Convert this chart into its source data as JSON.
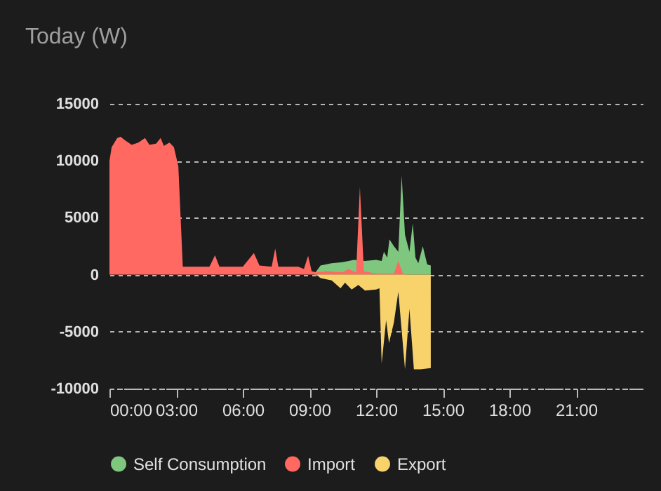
{
  "chart_data": {
    "type": "area",
    "title": "Today (W)",
    "xlim": [
      0,
      24
    ],
    "ylim": [
      -10000,
      15000
    ],
    "xticks": [
      {
        "value": 0,
        "label": "00:00"
      },
      {
        "value": 3,
        "label": "03:00"
      },
      {
        "value": 6,
        "label": "06:00"
      },
      {
        "value": 9,
        "label": "09:00"
      },
      {
        "value": 12,
        "label": "12:00"
      },
      {
        "value": 15,
        "label": "15:00"
      },
      {
        "value": 18,
        "label": "18:00"
      },
      {
        "value": 21,
        "label": "21:00"
      }
    ],
    "yticks": [
      -10000,
      -5000,
      0,
      5000,
      10000,
      15000
    ],
    "grid": "y",
    "legend": "bottom",
    "series": [
      {
        "name": "Self Consumption",
        "color": "#7fc77f",
        "x": [
          9.2,
          9.5,
          10.0,
          10.5,
          11.0,
          11.5,
          12.0,
          12.25,
          12.35,
          12.5,
          12.6,
          12.8,
          13.0,
          13.15,
          13.3,
          13.5,
          13.65,
          13.77,
          13.9,
          14.1,
          14.3,
          14.46
        ],
        "values": [
          0,
          800,
          1000,
          1100,
          1300,
          1200,
          1300,
          1200,
          2000,
          1500,
          3100,
          2500,
          2000,
          8700,
          3500,
          2000,
          4500,
          1500,
          1000,
          2500,
          900,
          800
        ]
      },
      {
        "name": "Import",
        "color": "#ff6961",
        "x": [
          0,
          0.1,
          0.35,
          0.5,
          0.7,
          1.0,
          1.3,
          1.6,
          1.8,
          2.1,
          2.3,
          2.45,
          2.7,
          2.9,
          3.1,
          3.3,
          4.5,
          4.75,
          4.95,
          6.0,
          6.5,
          6.75,
          7.3,
          7.46,
          7.6,
          8.5,
          8.75,
          8.94,
          9.1,
          9.3,
          9.8,
          10.5,
          10.75,
          11.1,
          11.27,
          11.45,
          12.0,
          12.8,
          13.0,
          13.2,
          13.4,
          14.46
        ],
        "values": [
          10000,
          11200,
          12000,
          12100,
          11800,
          11400,
          11600,
          12000,
          11400,
          11500,
          12000,
          11300,
          11600,
          11200,
          9500,
          700,
          700,
          1700,
          700,
          700,
          1900,
          800,
          700,
          2300,
          700,
          700,
          500,
          1650,
          300,
          200,
          300,
          200,
          500,
          200,
          7700,
          300,
          100,
          100,
          1200,
          100,
          0,
          0
        ]
      },
      {
        "name": "Export",
        "color": "#f8d26b",
        "x": [
          9.3,
          9.5,
          10.0,
          10.4,
          10.6,
          10.9,
          11.2,
          11.5,
          12.0,
          12.15,
          12.25,
          12.45,
          12.58,
          12.8,
          13.0,
          13.3,
          13.5,
          13.7,
          14.0,
          14.46
        ],
        "values": [
          0,
          -300,
          -500,
          -1200,
          -700,
          -1300,
          -900,
          -1400,
          -1300,
          -1200,
          -7800,
          -4000,
          -6000,
          -4200,
          -1500,
          -8300,
          -3000,
          -8300,
          -8300,
          -8200
        ]
      }
    ]
  }
}
